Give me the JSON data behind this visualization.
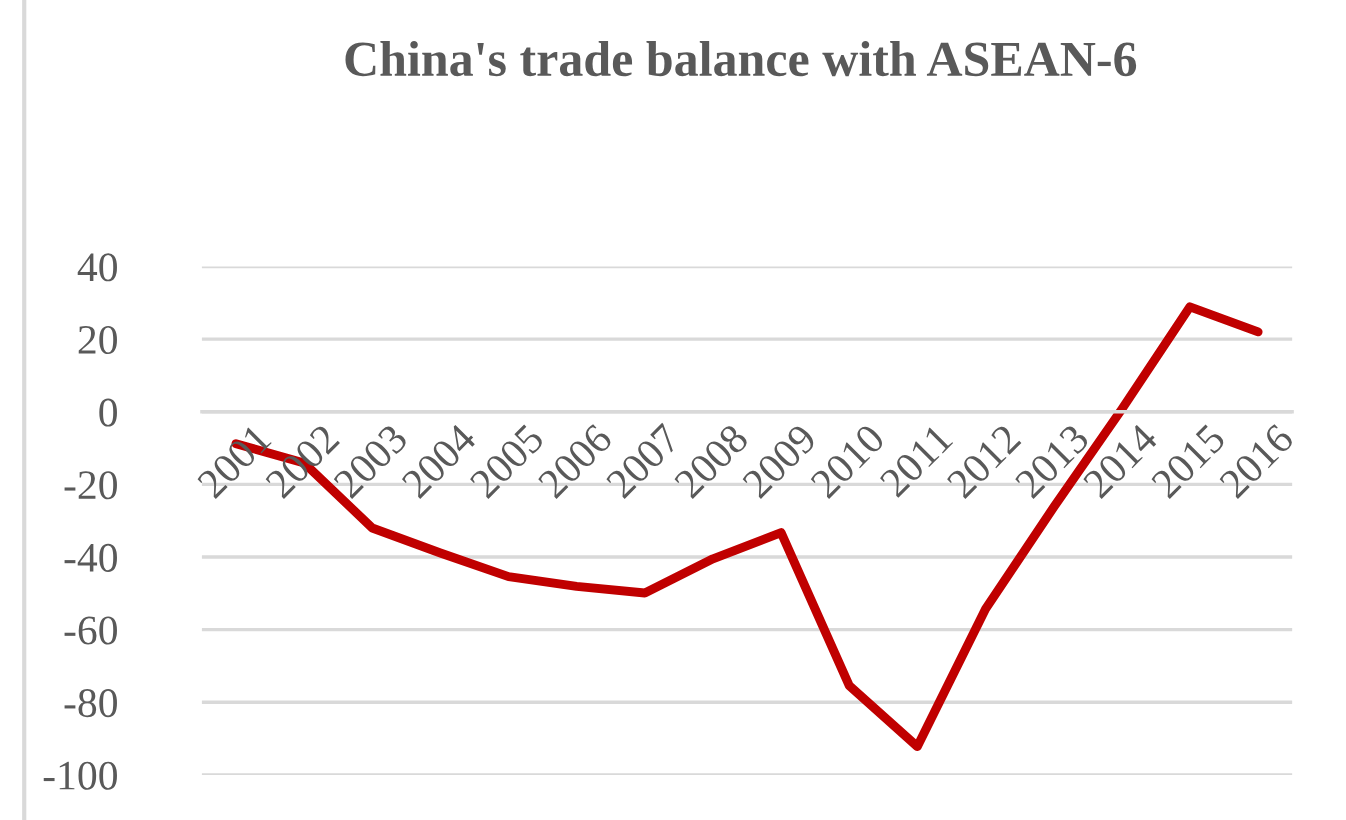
{
  "chart_data": {
    "type": "line",
    "title": "China's trade balance with ASEAN-6",
    "categories": [
      "2001",
      "2002",
      "2003",
      "2004",
      "2005",
      "2006",
      "2007",
      "2008",
      "2009",
      "2010",
      "2011",
      "2012",
      "2013",
      "2014",
      "2015",
      "2016"
    ],
    "series": [
      {
        "color": "#c00000",
        "values": [
          -8.8,
          -14.1,
          -32,
          -38.9,
          -45.4,
          -48.1,
          -49.9,
          -40.5,
          -33.3,
          -75.4,
          -92.2,
          -54.3,
          -26.3,
          0.7,
          28.9,
          22
        ]
      }
    ],
    "ylim": [
      -100,
      40
    ],
    "yticks": [
      -100,
      -80,
      -60,
      -40,
      -20,
      0,
      20,
      40
    ],
    "grid": "y",
    "marker": "none",
    "line_style": "solid"
  }
}
